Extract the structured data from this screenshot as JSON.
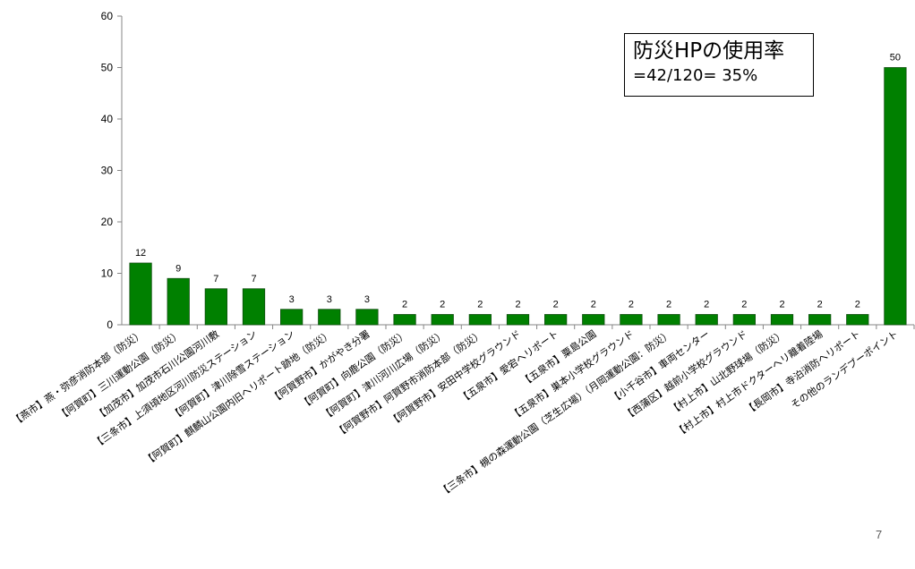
{
  "chart_data": {
    "type": "bar",
    "title": "",
    "xlabel": "",
    "ylabel": "",
    "ylim": [
      0,
      60
    ],
    "yticks": [
      0,
      10,
      20,
      30,
      40,
      50,
      60
    ],
    "grid": false,
    "legend": "none",
    "data_labels": true,
    "bar_color": "#008000",
    "categories": [
      "【燕市】燕・弥彦消防本部（防災）",
      "【阿賀町】三川運動公園（防災）",
      "【加茂市】加茂市石川公園河川敷",
      "【三条市】上須頃地区河川防災ステーション",
      "【阿賀町】津川除雪ステーション",
      "【阿賀町】麒麟山公園内旧ヘリポート跡地（防災）",
      "【阿賀野市】かがやき分署",
      "【阿賀町】向鹿公園（防災）",
      "【阿賀町】津川河川広場（防災）",
      "【阿賀野市】阿賀野市消防本部（防災）",
      "【阿賀野市】安田中学校グラウンド",
      "【五泉市】愛宕ヘリポート",
      "【五泉市】粟島公園",
      "【五泉市】巣本小学校グラウンド",
      "【三条市】槻の森運動公園（芝生広場）（月岡運動公園：防災）",
      "【小千谷市】車両センター",
      "【西蒲区】越前小学校グラウンド",
      "【村上市】山北野球場（防災）",
      "【村上市】村上市ドクターヘリ離着陸場",
      "【長岡市】寺泊消防ヘリポート",
      "その他のランデブーポイント"
    ],
    "series": [
      {
        "values": [
          12,
          9,
          7,
          7,
          3,
          3,
          3,
          2,
          2,
          2,
          2,
          2,
          2,
          2,
          2,
          2,
          2,
          2,
          2,
          2,
          50
        ]
      }
    ]
  },
  "callout": {
    "title": "防災HPの使用率",
    "formula": "=42/120= 35%"
  },
  "page_number": "7"
}
